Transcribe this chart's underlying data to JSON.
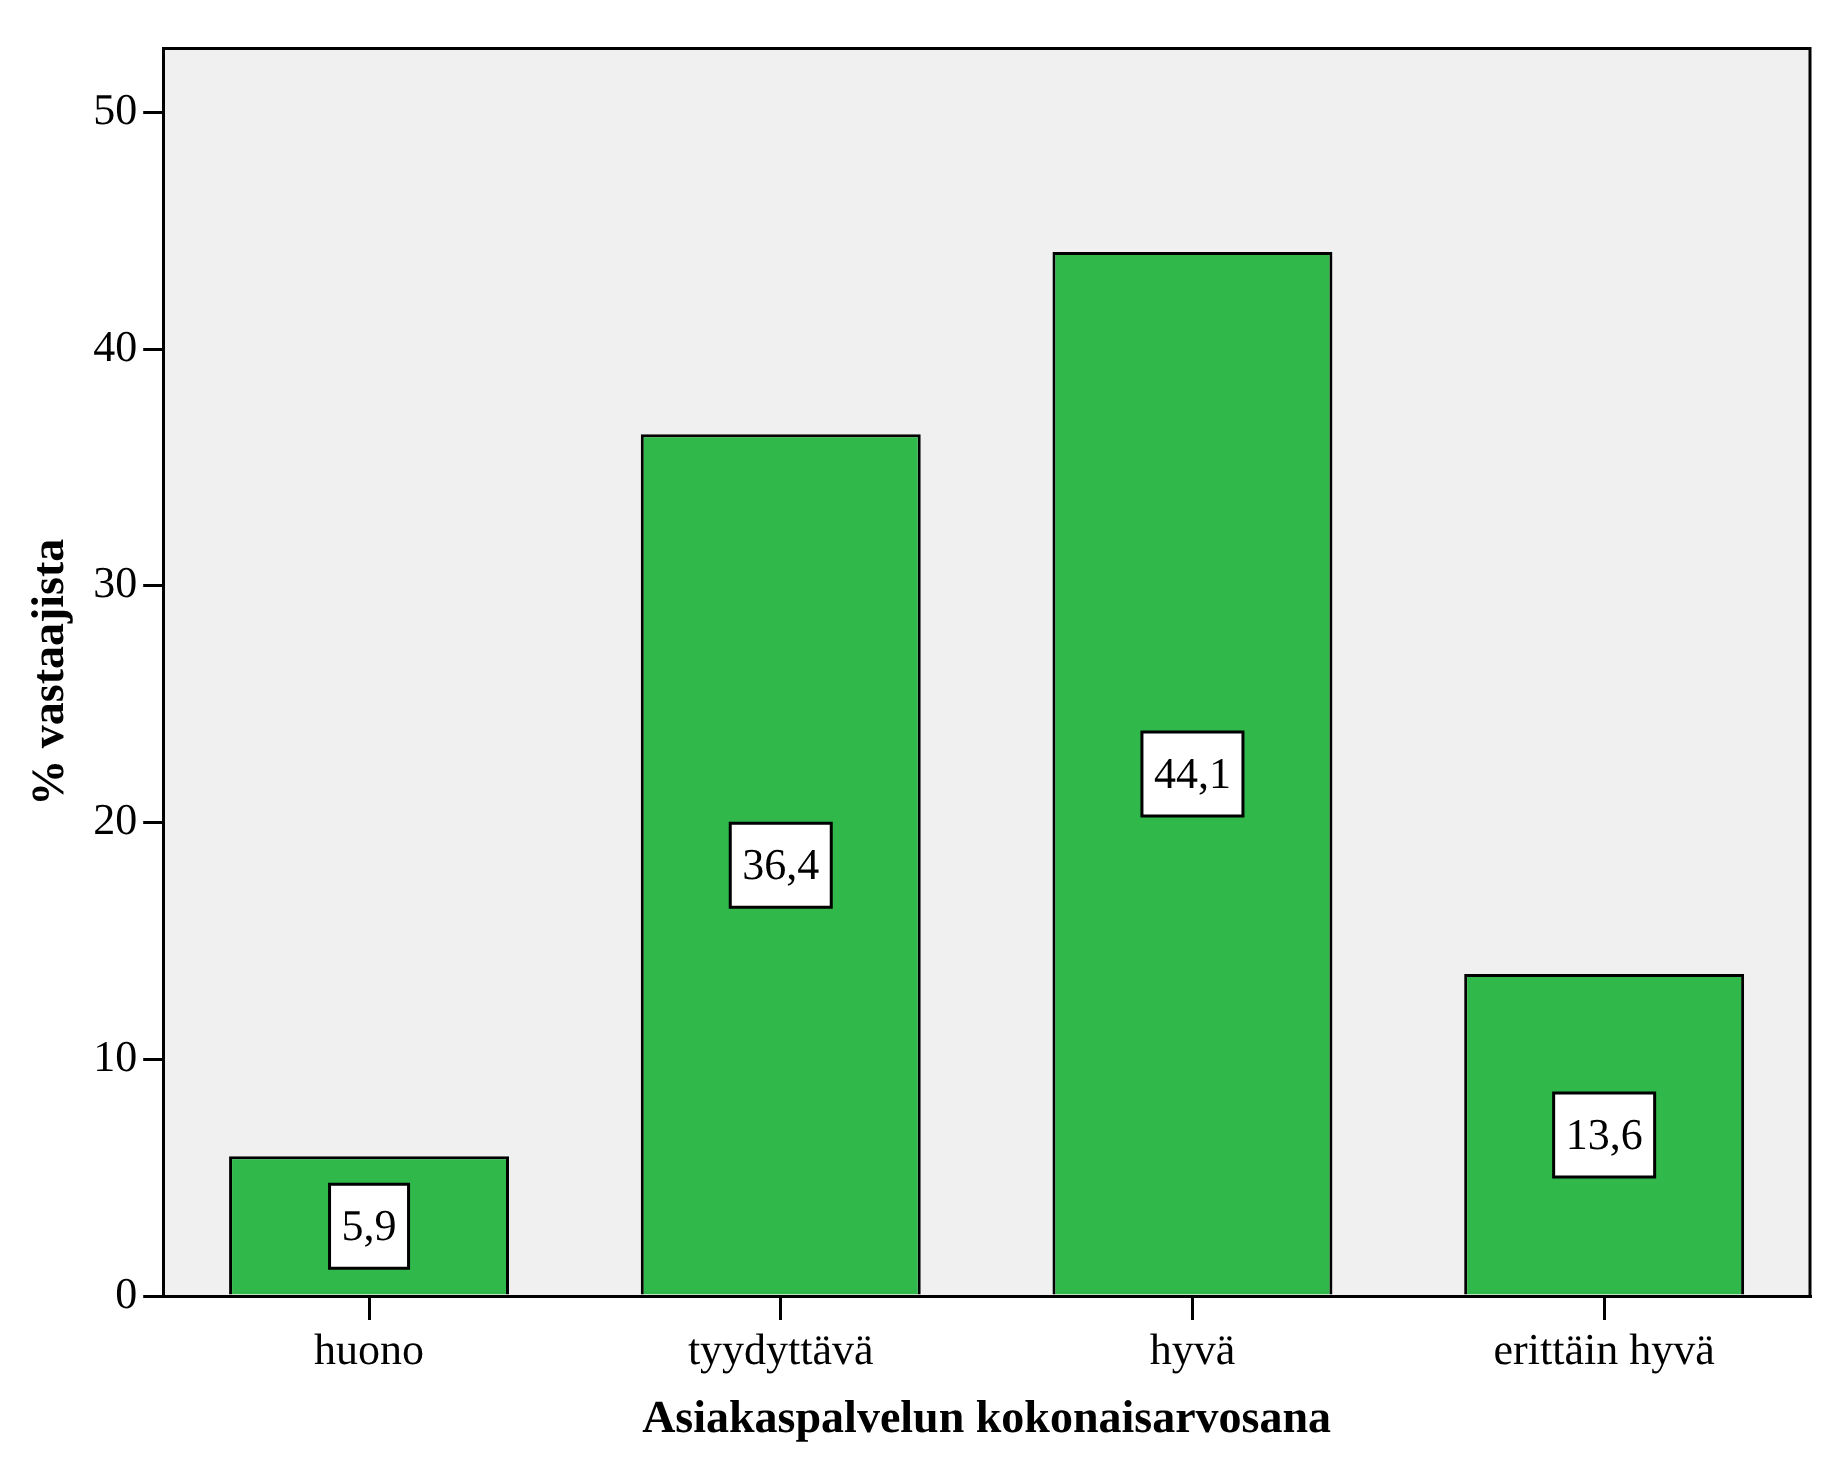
{
  "chart_data": {
    "type": "bar",
    "xlabel": "Asiakaspalvelun kokonaisarvosana",
    "ylabel": "% vastaajista",
    "categories": [
      "huono",
      "tyydyttävä",
      "hyvä",
      "erittäin hyvä"
    ],
    "values": [
      5.9,
      36.4,
      44.1,
      13.6
    ],
    "value_labels": [
      "5,9",
      "36,4",
      "44,1",
      "13,6"
    ],
    "color": "#31b84a",
    "ylim": [
      0,
      52.7
    ],
    "yticks": [
      0,
      10,
      20,
      30,
      40,
      50
    ],
    "grid": false,
    "legend": false
  }
}
